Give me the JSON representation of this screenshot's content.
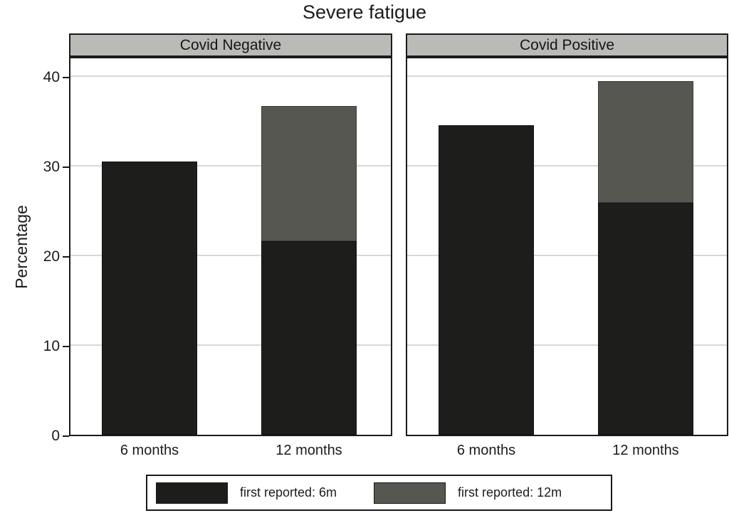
{
  "figure": {
    "title": "Severe fatigue",
    "ylabel": "Percentage",
    "legend": [
      {
        "label": "first reported: 6m",
        "color": "#1d1d1c",
        "swatch": "dark-swatch"
      },
      {
        "label": "first reported: 12m",
        "color": "#575752",
        "swatch": "gray-swatch"
      }
    ]
  },
  "chart_data": {
    "type": "bar",
    "stacked": true,
    "title": "Severe fatigue",
    "ylabel": "Percentage",
    "xlabel": "",
    "ylim": [
      0,
      42
    ],
    "yticks": [
      0,
      10,
      20,
      30,
      40
    ],
    "grid": true,
    "legend_position": "bottom",
    "panels": [
      {
        "label": "Covid Negative",
        "categories": [
          "6 months",
          "12 months"
        ],
        "series": [
          {
            "name": "first reported: 6m",
            "color": "#1d1d1c",
            "values": [
              30.5,
              21.6
            ]
          },
          {
            "name": "first reported: 12m",
            "color": "#575752",
            "values": [
              0,
              15.1
            ]
          }
        ],
        "stack_totals": [
          30.5,
          36.7
        ]
      },
      {
        "label": "Covid Positive",
        "categories": [
          "6 months",
          "12 months"
        ],
        "series": [
          {
            "name": "first reported: 6m",
            "color": "#1d1d1c",
            "values": [
              34.5,
              25.9
            ]
          },
          {
            "name": "first reported: 12m",
            "color": "#575752",
            "values": [
              0,
              13.6
            ]
          }
        ],
        "stack_totals": [
          34.5,
          39.5
        ]
      }
    ],
    "colors": {
      "first_6m": "#1d1d1c",
      "first_12m": "#575752"
    },
    "gridline_color": "#d8d8d8",
    "panel_header_color": "#babbb7"
  }
}
